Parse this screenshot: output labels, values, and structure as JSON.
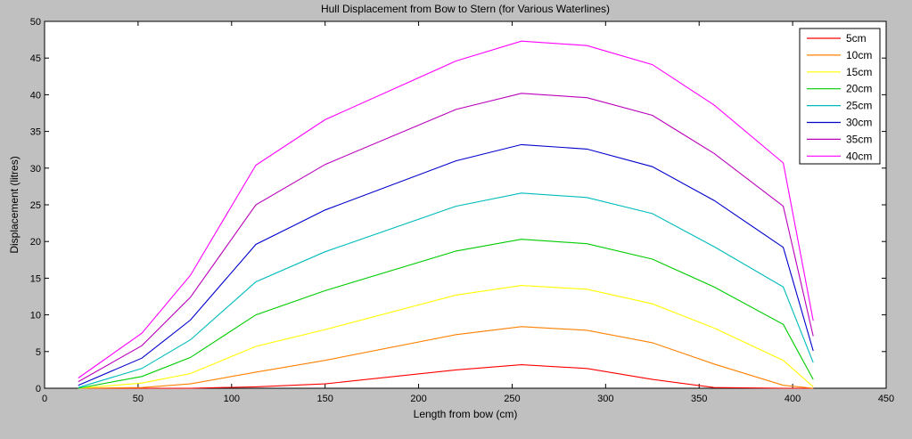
{
  "chart_data": {
    "type": "line",
    "title": "Hull Displacement from Bow to Stern (for Various Waterlines)",
    "xlabel": "Length from bow (cm)",
    "ylabel": "Displacement (litres)",
    "xlim": [
      0,
      450
    ],
    "ylim": [
      0,
      50
    ],
    "xticks": [
      0,
      50,
      100,
      150,
      200,
      250,
      300,
      350,
      400,
      450
    ],
    "yticks": [
      0,
      5,
      10,
      15,
      20,
      25,
      30,
      35,
      40,
      45,
      50
    ],
    "grid": false,
    "legend_position": "top-right",
    "x": [
      18,
      52,
      78,
      113,
      150,
      220,
      255,
      290,
      325,
      358,
      395,
      411
    ],
    "series": [
      {
        "name": "5cm",
        "color": "#ff0000",
        "values": [
          0,
          0,
          0,
          0.2,
          0.6,
          2.5,
          3.2,
          2.7,
          1.2,
          0.1,
          0,
          0
        ]
      },
      {
        "name": "10cm",
        "color": "#ff8000",
        "values": [
          0,
          0.1,
          0.6,
          2.2,
          3.8,
          7.3,
          8.4,
          7.9,
          6.2,
          3.3,
          0.4,
          0
        ]
      },
      {
        "name": "15cm",
        "color": "#ffff00",
        "values": [
          0,
          0.7,
          2.0,
          5.7,
          8.0,
          12.7,
          14.0,
          13.5,
          11.5,
          8.2,
          3.8,
          0.2
        ]
      },
      {
        "name": "20cm",
        "color": "#00cc00",
        "values": [
          0,
          1.6,
          4.2,
          10.0,
          13.3,
          18.7,
          20.3,
          19.7,
          17.6,
          13.8,
          8.7,
          1.2
        ]
      },
      {
        "name": "25cm",
        "color": "#00bbbb",
        "values": [
          0.1,
          2.7,
          6.6,
          14.5,
          18.6,
          24.8,
          26.6,
          26.0,
          23.8,
          19.3,
          13.8,
          3.5
        ]
      },
      {
        "name": "30cm",
        "color": "#0000cc",
        "values": [
          0.4,
          4.1,
          9.3,
          19.6,
          24.3,
          31.0,
          33.2,
          32.6,
          30.2,
          25.6,
          19.2,
          5.1
        ]
      },
      {
        "name": "35cm",
        "color": "#bb00bb",
        "values": [
          0.9,
          5.8,
          12.4,
          25.0,
          30.5,
          38.0,
          40.2,
          39.6,
          37.2,
          32.0,
          24.8,
          7.1
        ]
      },
      {
        "name": "40cm",
        "color": "#ff00ff",
        "values": [
          1.4,
          7.5,
          15.4,
          30.4,
          36.6,
          44.6,
          47.3,
          46.7,
          44.1,
          38.6,
          30.7,
          9.2
        ]
      }
    ]
  }
}
